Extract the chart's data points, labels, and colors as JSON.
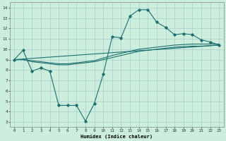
{
  "title": "",
  "xlabel": "Humidex (Indice chaleur)",
  "background_color": "#cceedd",
  "grid_color": "#aacccc",
  "line_color": "#1a7070",
  "xlim": [
    -0.5,
    23.5
  ],
  "ylim": [
    2.5,
    14.5
  ],
  "xtick_labels": [
    "0",
    "1",
    "2",
    "3",
    "4",
    "5",
    "6",
    "7",
    "8",
    "9",
    "10",
    "11",
    "12",
    "13",
    "14",
    "15",
    "16",
    "17",
    "18",
    "19",
    "20",
    "21",
    "22",
    "23"
  ],
  "ytick_labels": [
    "3",
    "4",
    "5",
    "6",
    "7",
    "8",
    "9",
    "10",
    "11",
    "12",
    "13",
    "14"
  ],
  "ytick_vals": [
    3,
    4,
    5,
    6,
    7,
    8,
    9,
    10,
    11,
    12,
    13,
    14
  ],
  "series1_x": [
    0,
    1,
    2,
    3,
    4,
    5,
    6,
    7,
    8,
    9,
    10,
    11,
    12,
    13,
    14,
    15,
    16,
    17,
    18,
    19,
    20,
    21,
    22,
    23
  ],
  "series1_y": [
    9.0,
    9.9,
    7.9,
    8.2,
    7.9,
    4.6,
    4.6,
    4.6,
    3.1,
    4.8,
    7.6,
    11.2,
    11.1,
    13.2,
    13.8,
    13.8,
    12.6,
    12.1,
    11.4,
    11.5,
    11.4,
    10.9,
    10.7,
    10.4
  ],
  "series2_x": [
    0,
    23
  ],
  "series2_y": [
    9.0,
    10.4
  ],
  "series3_x": [
    0,
    1,
    2,
    3,
    4,
    5,
    6,
    7,
    8,
    9,
    10,
    11,
    12,
    13,
    14,
    15,
    16,
    17,
    18,
    19,
    20,
    21,
    22,
    23
  ],
  "series3_y": [
    9.0,
    9.0,
    8.8,
    8.7,
    8.6,
    8.5,
    8.5,
    8.6,
    8.7,
    8.8,
    9.0,
    9.2,
    9.4,
    9.6,
    9.8,
    9.9,
    10.0,
    10.1,
    10.2,
    10.25,
    10.3,
    10.3,
    10.35,
    10.4
  ],
  "series4_x": [
    0,
    1,
    2,
    3,
    4,
    5,
    6,
    7,
    8,
    9,
    10,
    11,
    12,
    13,
    14,
    15,
    16,
    17,
    18,
    19,
    20,
    21,
    22,
    23
  ],
  "series4_y": [
    9.0,
    9.0,
    8.9,
    8.8,
    8.7,
    8.6,
    8.6,
    8.7,
    8.8,
    8.9,
    9.15,
    9.4,
    9.6,
    9.8,
    10.0,
    10.1,
    10.2,
    10.3,
    10.4,
    10.45,
    10.5,
    10.5,
    10.5,
    10.5
  ]
}
